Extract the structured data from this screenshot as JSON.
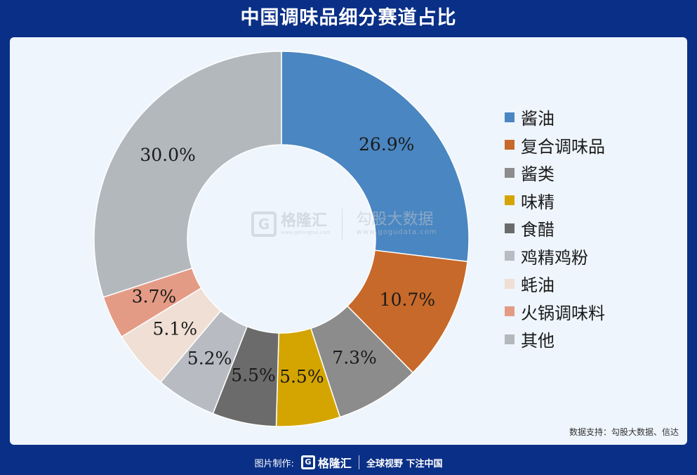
{
  "title": "中国调味品细分赛道占比",
  "chart_data": {
    "type": "pie",
    "subtype": "donut",
    "title": "",
    "legend_position": "right",
    "slices": [
      {
        "label": "酱油",
        "value": 26.9,
        "display": "26.9%",
        "color": "#4a86c1"
      },
      {
        "label": "复合调味品",
        "value": 10.7,
        "display": "10.7%",
        "color": "#c7692a"
      },
      {
        "label": "酱类",
        "value": 7.3,
        "display": "7.3%",
        "color": "#8c8c8c"
      },
      {
        "label": "味精",
        "value": 5.5,
        "display": "5.5%",
        "color": "#d4a500"
      },
      {
        "label": "食醋",
        "value": 5.5,
        "display": "5.5%",
        "color": "#6b6b6b"
      },
      {
        "label": "鸡精鸡粉",
        "value": 5.2,
        "display": "5.2%",
        "color": "#b8bcc2"
      },
      {
        "label": "蚝油",
        "value": 5.1,
        "display": "5.1%",
        "color": "#efdfd4"
      },
      {
        "label": "火锅调味料",
        "value": 3.7,
        "display": "3.7%",
        "color": "#e49b85"
      },
      {
        "label": "其他",
        "value": 30.0,
        "display": "30.0%",
        "color": "#b3b8bd"
      }
    ]
  },
  "watermark": {
    "brand": "格隆汇",
    "brand_url": "www.gelonghui.com",
    "partner": "勾股大数据",
    "partner_url": "www.gogudata.com"
  },
  "source": "数据支持：勾股大数据、信达",
  "footer": {
    "prefix": "图片制作:",
    "brand": "格隆汇",
    "slogan": "全球视野 下注中国"
  }
}
